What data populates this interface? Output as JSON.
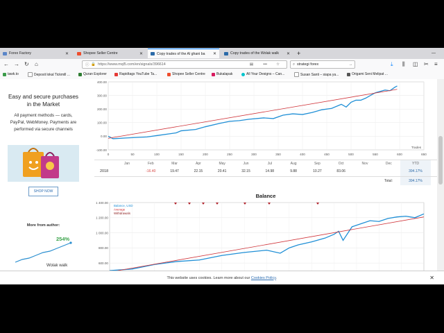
{
  "tabs": [
    {
      "label": "Forex Factory",
      "color": "#5b86c8"
    },
    {
      "label": "Shopee Seller Centre",
      "color": "#ee4d2d"
    },
    {
      "label": "Copy trades of the Al ghani ba",
      "color": "#2b6aa8"
    },
    {
      "label": "Copy trades of the Wolak walk",
      "color": "#2b6aa8"
    }
  ],
  "nav": {
    "url": "https://www.mql5.com/en/signals/396614",
    "search_value": "strategi forex",
    "dots": "•••"
  },
  "bookmarks": [
    {
      "label": "tawk.to"
    },
    {
      "label": "Deposit lokal Tickmill ..."
    },
    {
      "label": "Quran Explorer"
    },
    {
      "label": "Rapidtags YouTube Ta..."
    },
    {
      "label": "Shopee Seller Centre"
    },
    {
      "label": "Bukalapak"
    },
    {
      "label": "All Your Designs – Can..."
    },
    {
      "label": "Susan Santi – siapa ya..."
    },
    {
      "label": "Origami Seni Melipat ..."
    }
  ],
  "sidebar": {
    "title": "Easy and secure purchases in the Market",
    "text": "All payment methods — cards, PayPal, WebMoney. Payments are performed via secure channels",
    "shop_button": "SHOP NOW",
    "more_from_author": "More from author:",
    "author_pct": "254%",
    "author_name": "Wolak walk"
  },
  "chart_top": {
    "y_ticks": [
      "400.00",
      "300.00",
      "200.00",
      "100.00",
      "0.00",
      "-100.00"
    ],
    "x_ticks": [
      "0",
      "50",
      "100",
      "150",
      "200",
      "250",
      "300",
      "350",
      "400",
      "450",
      "500",
      "550",
      "600",
      "650"
    ],
    "x_unit": "Trades"
  },
  "table": {
    "months": [
      "Jan",
      "Feb",
      "Mar",
      "Apr",
      "May",
      "Jun",
      "Jul",
      "Aug",
      "Sep",
      "Oct",
      "Nov",
      "Dec",
      "YTD"
    ],
    "year": "2018",
    "values": [
      "",
      "-16.40",
      "19.47",
      "22.15",
      "20.41",
      "32.15",
      "14.98",
      "9.88",
      "10.27",
      "83.06",
      "",
      "",
      "394.17%"
    ],
    "total_label": "Total:",
    "total_value": "394.17%"
  },
  "chart_bottom": {
    "title": "Balance",
    "legend": [
      "Balance, USD",
      "Average",
      "Withdrawals"
    ],
    "y_ticks": [
      "1 400.00",
      "1 200.00",
      "1 000.00",
      "800.00",
      "600.00"
    ]
  },
  "cookie": {
    "text": "This website uses cookies. Learn more about our",
    "link": "Cookies Policy",
    "end": "."
  },
  "chart_data": [
    {
      "type": "line",
      "x_unit": "Trades",
      "x_ticks": [
        0,
        50,
        100,
        150,
        200,
        250,
        300,
        350,
        400,
        450,
        500,
        550,
        600,
        650
      ],
      "ylim": [
        -100,
        400
      ],
      "xlim": [
        0,
        650
      ],
      "grid": true,
      "series": [
        {
          "values_xy": [
            [
              0,
              0
            ],
            [
              10,
              -18
            ],
            [
              40,
              -12
            ],
            [
              80,
              -5
            ],
            [
              100,
              5
            ],
            [
              130,
              20
            ],
            [
              140,
              25
            ],
            [
              150,
              40
            ],
            [
              180,
              50
            ],
            [
              200,
              70
            ],
            [
              230,
              95
            ],
            [
              250,
              110
            ],
            [
              270,
              115
            ],
            [
              290,
              125
            ],
            [
              320,
              135
            ],
            [
              340,
              130
            ],
            [
              360,
              155
            ],
            [
              380,
              165
            ],
            [
              400,
              160
            ],
            [
              420,
              175
            ],
            [
              440,
              195
            ],
            [
              460,
              205
            ],
            [
              480,
              235
            ],
            [
              490,
              215
            ],
            [
              500,
              250
            ],
            [
              510,
              265
            ],
            [
              520,
              265
            ],
            [
              530,
              280
            ],
            [
              540,
              300
            ],
            [
              550,
              320
            ],
            [
              560,
              330
            ],
            [
              570,
              340
            ],
            [
              580,
              335
            ],
            [
              590,
              360
            ],
            [
              595,
              370
            ]
          ]
        },
        {
          "values_xy": [
            [
              0,
              -15
            ],
            [
              595,
              345
            ]
          ]
        }
      ]
    },
    {
      "type": "line",
      "title": "Balance",
      "ylim": [
        500,
        1400
      ],
      "grid": true,
      "legend": "top-left",
      "series": [
        {
          "name": "Balance, USD",
          "values_xy": [
            [
              0,
              500
            ],
            [
              50,
              520
            ],
            [
              100,
              580
            ],
            [
              150,
              620
            ],
            [
              200,
              640
            ],
            [
              250,
              700
            ],
            [
              300,
              740
            ],
            [
              350,
              770
            ],
            [
              380,
              730
            ],
            [
              400,
              800
            ],
            [
              420,
              840
            ],
            [
              450,
              880
            ],
            [
              480,
              930
            ],
            [
              500,
              980
            ],
            [
              510,
              1020
            ],
            [
              520,
              900
            ],
            [
              540,
              1080
            ],
            [
              560,
              1120
            ],
            [
              580,
              1160
            ],
            [
              600,
              1150
            ],
            [
              620,
              1190
            ],
            [
              640,
              1210
            ],
            [
              660,
              1220
            ],
            [
              680,
              1200
            ],
            [
              700,
              1250
            ]
          ]
        },
        {
          "name": "Average",
          "values_xy": [
            [
              0,
              480
            ],
            [
              700,
              1210
            ]
          ]
        },
        {
          "name": "Withdrawals",
          "values_xy": []
        }
      ]
    }
  ]
}
